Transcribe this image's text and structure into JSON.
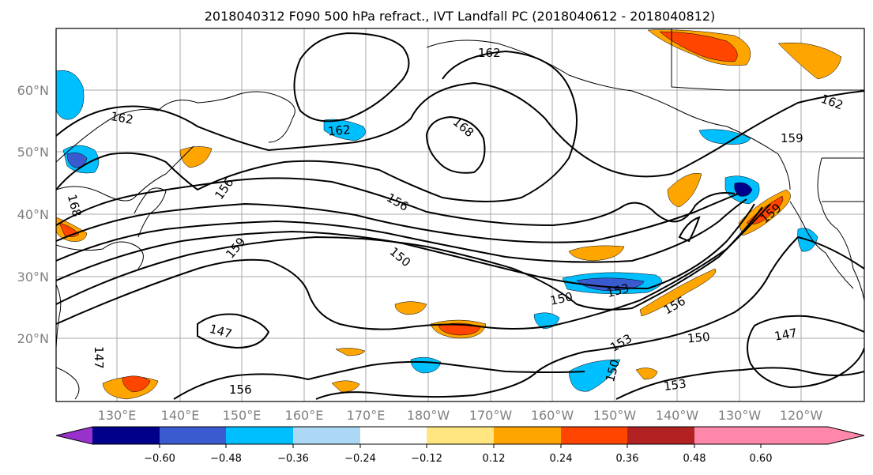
{
  "title": "2018040312 F090 500 hPa refract., IVT Landfall PC (2018040612 - 2018040812)",
  "map": {
    "lat_labels": [
      "60°N",
      "50°N",
      "40°N",
      "30°N",
      "20°N"
    ],
    "lon_labels": [
      "130°E",
      "140°E",
      "150°E",
      "160°E",
      "170°E",
      "180°W",
      "170°W",
      "160°W",
      "150°W",
      "140°W",
      "130°W",
      "120°W"
    ],
    "contour_labels": [
      "162",
      "162",
      "168",
      "159",
      "162",
      "168",
      "156",
      "159",
      "156",
      "150",
      "159",
      "147",
      "147",
      "150",
      "153",
      "156",
      "153",
      "150",
      "147",
      "153",
      "150",
      "156",
      "162"
    ]
  },
  "colorbar": {
    "colors": [
      "#9932cc",
      "#00008b",
      "#3a5bd0",
      "#00bfff",
      "#add8f5",
      "#ffffff",
      "#ffe680",
      "#ffa500",
      "#ff4500",
      "#b22222",
      "#ff88aa"
    ],
    "tick_labels": [
      "−0.60",
      "−0.48",
      "−0.36",
      "−0.24",
      "−0.12",
      "0.12",
      "0.24",
      "0.36",
      "0.48",
      "0.60"
    ]
  },
  "colors": {
    "contour": "#000000",
    "coastline": "#000000",
    "grid": "#aaaaaa",
    "axis_label": "#808080"
  }
}
